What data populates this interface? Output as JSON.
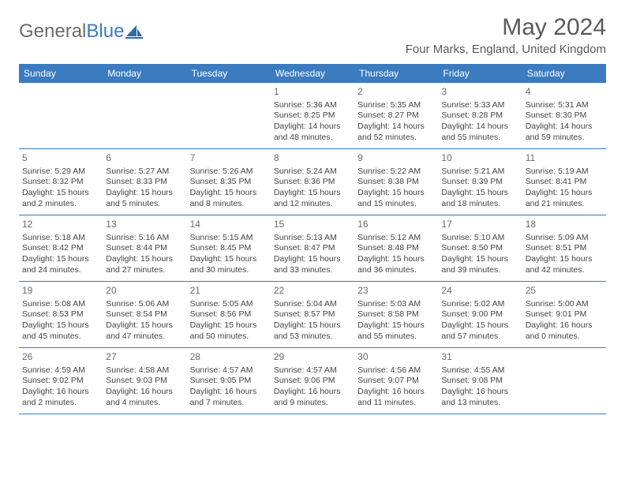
{
  "brand": {
    "word1": "General",
    "word2": "Blue"
  },
  "title": "May 2024",
  "location": "Four Marks, England, United Kingdom",
  "colors": {
    "header_bg": "#3b7bbf",
    "header_text": "#ffffff",
    "border": "#3b7bbf",
    "title_text": "#595959",
    "body_text": "#444444",
    "logo_gray": "#6b6b6b",
    "logo_blue": "#3b7bbf",
    "background": "#ffffff"
  },
  "layout": {
    "columns": 7,
    "rows": 5,
    "blanks_before": 3
  },
  "weekdays": [
    "Sunday",
    "Monday",
    "Tuesday",
    "Wednesday",
    "Thursday",
    "Friday",
    "Saturday"
  ],
  "days": [
    {
      "n": "1",
      "sr": "Sunrise: 5:36 AM",
      "ss": "Sunset: 8:25 PM",
      "d1": "Daylight: 14 hours",
      "d2": "and 48 minutes."
    },
    {
      "n": "2",
      "sr": "Sunrise: 5:35 AM",
      "ss": "Sunset: 8:27 PM",
      "d1": "Daylight: 14 hours",
      "d2": "and 52 minutes."
    },
    {
      "n": "3",
      "sr": "Sunrise: 5:33 AM",
      "ss": "Sunset: 8:28 PM",
      "d1": "Daylight: 14 hours",
      "d2": "and 55 minutes."
    },
    {
      "n": "4",
      "sr": "Sunrise: 5:31 AM",
      "ss": "Sunset: 8:30 PM",
      "d1": "Daylight: 14 hours",
      "d2": "and 59 minutes."
    },
    {
      "n": "5",
      "sr": "Sunrise: 5:29 AM",
      "ss": "Sunset: 8:32 PM",
      "d1": "Daylight: 15 hours",
      "d2": "and 2 minutes."
    },
    {
      "n": "6",
      "sr": "Sunrise: 5:27 AM",
      "ss": "Sunset: 8:33 PM",
      "d1": "Daylight: 15 hours",
      "d2": "and 5 minutes."
    },
    {
      "n": "7",
      "sr": "Sunrise: 5:26 AM",
      "ss": "Sunset: 8:35 PM",
      "d1": "Daylight: 15 hours",
      "d2": "and 8 minutes."
    },
    {
      "n": "8",
      "sr": "Sunrise: 5:24 AM",
      "ss": "Sunset: 8:36 PM",
      "d1": "Daylight: 15 hours",
      "d2": "and 12 minutes."
    },
    {
      "n": "9",
      "sr": "Sunrise: 5:22 AM",
      "ss": "Sunset: 8:38 PM",
      "d1": "Daylight: 15 hours",
      "d2": "and 15 minutes."
    },
    {
      "n": "10",
      "sr": "Sunrise: 5:21 AM",
      "ss": "Sunset: 8:39 PM",
      "d1": "Daylight: 15 hours",
      "d2": "and 18 minutes."
    },
    {
      "n": "11",
      "sr": "Sunrise: 5:19 AM",
      "ss": "Sunset: 8:41 PM",
      "d1": "Daylight: 15 hours",
      "d2": "and 21 minutes."
    },
    {
      "n": "12",
      "sr": "Sunrise: 5:18 AM",
      "ss": "Sunset: 8:42 PM",
      "d1": "Daylight: 15 hours",
      "d2": "and 24 minutes."
    },
    {
      "n": "13",
      "sr": "Sunrise: 5:16 AM",
      "ss": "Sunset: 8:44 PM",
      "d1": "Daylight: 15 hours",
      "d2": "and 27 minutes."
    },
    {
      "n": "14",
      "sr": "Sunrise: 5:15 AM",
      "ss": "Sunset: 8:45 PM",
      "d1": "Daylight: 15 hours",
      "d2": "and 30 minutes."
    },
    {
      "n": "15",
      "sr": "Sunrise: 5:13 AM",
      "ss": "Sunset: 8:47 PM",
      "d1": "Daylight: 15 hours",
      "d2": "and 33 minutes."
    },
    {
      "n": "16",
      "sr": "Sunrise: 5:12 AM",
      "ss": "Sunset: 8:48 PM",
      "d1": "Daylight: 15 hours",
      "d2": "and 36 minutes."
    },
    {
      "n": "17",
      "sr": "Sunrise: 5:10 AM",
      "ss": "Sunset: 8:50 PM",
      "d1": "Daylight: 15 hours",
      "d2": "and 39 minutes."
    },
    {
      "n": "18",
      "sr": "Sunrise: 5:09 AM",
      "ss": "Sunset: 8:51 PM",
      "d1": "Daylight: 15 hours",
      "d2": "and 42 minutes."
    },
    {
      "n": "19",
      "sr": "Sunrise: 5:08 AM",
      "ss": "Sunset: 8:53 PM",
      "d1": "Daylight: 15 hours",
      "d2": "and 45 minutes."
    },
    {
      "n": "20",
      "sr": "Sunrise: 5:06 AM",
      "ss": "Sunset: 8:54 PM",
      "d1": "Daylight: 15 hours",
      "d2": "and 47 minutes."
    },
    {
      "n": "21",
      "sr": "Sunrise: 5:05 AM",
      "ss": "Sunset: 8:56 PM",
      "d1": "Daylight: 15 hours",
      "d2": "and 50 minutes."
    },
    {
      "n": "22",
      "sr": "Sunrise: 5:04 AM",
      "ss": "Sunset: 8:57 PM",
      "d1": "Daylight: 15 hours",
      "d2": "and 53 minutes."
    },
    {
      "n": "23",
      "sr": "Sunrise: 5:03 AM",
      "ss": "Sunset: 8:58 PM",
      "d1": "Daylight: 15 hours",
      "d2": "and 55 minutes."
    },
    {
      "n": "24",
      "sr": "Sunrise: 5:02 AM",
      "ss": "Sunset: 9:00 PM",
      "d1": "Daylight: 15 hours",
      "d2": "and 57 minutes."
    },
    {
      "n": "25",
      "sr": "Sunrise: 5:00 AM",
      "ss": "Sunset: 9:01 PM",
      "d1": "Daylight: 16 hours",
      "d2": "and 0 minutes."
    },
    {
      "n": "26",
      "sr": "Sunrise: 4:59 AM",
      "ss": "Sunset: 9:02 PM",
      "d1": "Daylight: 16 hours",
      "d2": "and 2 minutes."
    },
    {
      "n": "27",
      "sr": "Sunrise: 4:58 AM",
      "ss": "Sunset: 9:03 PM",
      "d1": "Daylight: 16 hours",
      "d2": "and 4 minutes."
    },
    {
      "n": "28",
      "sr": "Sunrise: 4:57 AM",
      "ss": "Sunset: 9:05 PM",
      "d1": "Daylight: 16 hours",
      "d2": "and 7 minutes."
    },
    {
      "n": "29",
      "sr": "Sunrise: 4:57 AM",
      "ss": "Sunset: 9:06 PM",
      "d1": "Daylight: 16 hours",
      "d2": "and 9 minutes."
    },
    {
      "n": "30",
      "sr": "Sunrise: 4:56 AM",
      "ss": "Sunset: 9:07 PM",
      "d1": "Daylight: 16 hours",
      "d2": "and 11 minutes."
    },
    {
      "n": "31",
      "sr": "Sunrise: 4:55 AM",
      "ss": "Sunset: 9:08 PM",
      "d1": "Daylight: 16 hours",
      "d2": "and 13 minutes."
    }
  ]
}
